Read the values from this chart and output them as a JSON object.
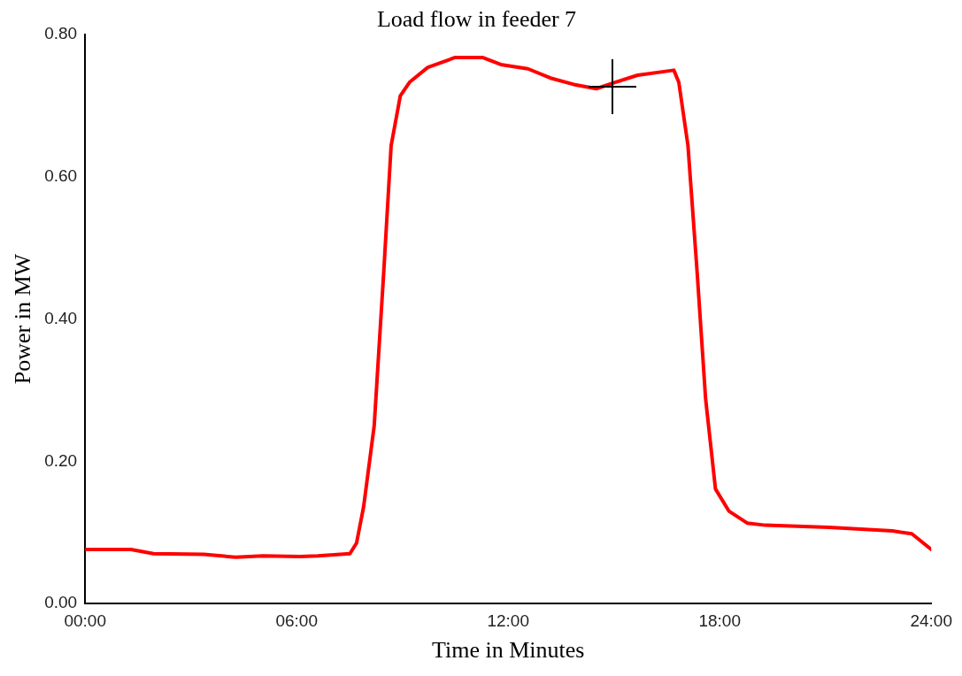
{
  "chart_data": {
    "type": "line",
    "title": "Load flow in feeder 7",
    "xlabel": "Time in Minutes",
    "ylabel": "Power in MW",
    "x": [
      0,
      1.3,
      1.94,
      3.37,
      4.27,
      5.05,
      6.09,
      6.6,
      7.51,
      7.7,
      7.9,
      8.2,
      8.47,
      8.68,
      8.94,
      9.2,
      9.72,
      10.5,
      11.27,
      11.79,
      12.56,
      13.2,
      13.86,
      14.5,
      15.03,
      15.67,
      16.7,
      16.84,
      17.1,
      17.36,
      17.6,
      17.88,
      18.26,
      18.78,
      19.3,
      21.1,
      22.9,
      23.45,
      24
    ],
    "series": [
      {
        "color": "#ff0000",
        "values": [
          0.076,
          0.076,
          0.07,
          0.069,
          0.065,
          0.067,
          0.066,
          0.067,
          0.07,
          0.085,
          0.136,
          0.25,
          0.466,
          0.644,
          0.714,
          0.733,
          0.754,
          0.768,
          0.768,
          0.758,
          0.752,
          0.739,
          0.73,
          0.724,
          0.733,
          0.743,
          0.75,
          0.733,
          0.644,
          0.466,
          0.288,
          0.161,
          0.13,
          0.113,
          0.11,
          0.107,
          0.102,
          0.098,
          0.076
        ]
      }
    ],
    "xlim": [
      0,
      24
    ],
    "xticks": [
      {
        "value": 0,
        "label": "00:00"
      },
      {
        "value": 6,
        "label": "06:00"
      },
      {
        "value": 12,
        "label": "12:00"
      },
      {
        "value": 18,
        "label": "18:00"
      },
      {
        "value": 24,
        "label": "24:00"
      }
    ],
    "ylim": [
      0,
      0.8
    ],
    "yticks": [
      {
        "value": 0,
        "label": "0.00"
      },
      {
        "value": 0.2,
        "label": "0.20"
      },
      {
        "value": 0.4,
        "label": "0.40"
      },
      {
        "value": 0.6,
        "label": "0.60"
      },
      {
        "value": 0.8,
        "label": "0.80"
      }
    ],
    "grid": false,
    "legend": false,
    "marker": "none",
    "line_style": "solid"
  }
}
